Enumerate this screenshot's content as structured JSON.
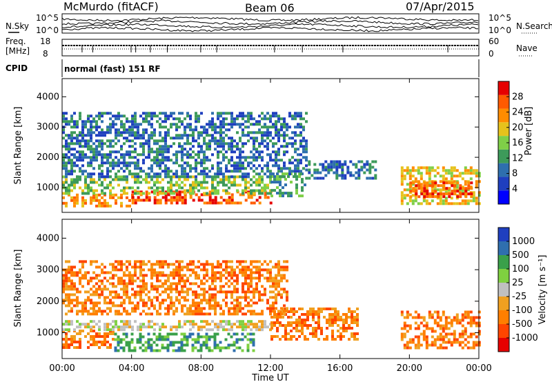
{
  "header": {
    "title": "McMurdo (fitACF)",
    "beam": "Beam 06",
    "date": "07/Apr/2015"
  },
  "left_labels": {
    "nsky": "N.Sky",
    "freq_line1": "Freq.",
    "freq_line2": "[MHz]",
    "cpid": "CPID"
  },
  "right_labels": {
    "nsearch": "N.Search",
    "nave": "Nave"
  },
  "cpid_text": "normal (fast) 151 RF",
  "noise_axis": {
    "left_top": "10^5",
    "left_bottom": "10^0",
    "right_top": "10^5",
    "right_bottom": "10^0"
  },
  "freq_axis": {
    "left_top": "18",
    "left_bottom": "8",
    "right_top": "60",
    "right_bottom": "0"
  },
  "colors": {
    "power_scale": [
      "#0000ff",
      "#1f3fbf",
      "#2e6fae",
      "#3d9a5a",
      "#7fcf48",
      "#e6c21c",
      "#ff8c00",
      "#ff5a00",
      "#e60000"
    ],
    "velocity_scale": [
      "#e60000",
      "#ff4500",
      "#ff7f00",
      "#f0a020",
      "#c0c0c0",
      "#7fd040",
      "#3aa04a",
      "#2f6fae",
      "#1f3fbf"
    ]
  },
  "chart_data": [
    {
      "type": "heatmap",
      "panel": "power",
      "ylabel": "Slant Range [km]",
      "ylim": [
        180,
        4600
      ],
      "yticks": [
        "1000",
        "2000",
        "3000",
        "4000"
      ],
      "xlim_hours": [
        0,
        24
      ],
      "xticks": [
        "00:00",
        "04:00",
        "08:00",
        "12:00",
        "16:00",
        "20:00",
        "00:00"
      ],
      "colorbar": {
        "label": "Power [dB]",
        "ticks": [
          "4",
          "8",
          "12",
          "16",
          "20",
          "24",
          "28"
        ],
        "range": [
          0,
          30
        ]
      },
      "regions": [
        {
          "t": [
            0.0,
            4.0
          ],
          "range_km": [
            400,
            800
          ],
          "dB": 24
        },
        {
          "t": [
            4.0,
            12.0
          ],
          "range_km": [
            450,
            900
          ],
          "dB": 28
        },
        {
          "t": [
            0.0,
            12.0
          ],
          "range_km": [
            800,
            1400
          ],
          "dB": 16
        },
        {
          "t": [
            12.0,
            14.0
          ],
          "range_km": [
            700,
            1500
          ],
          "dB": 12
        },
        {
          "t": [
            14.0,
            18.0
          ],
          "range_km": [
            1300,
            1900
          ],
          "dB": 6
        },
        {
          "t": [
            0.0,
            14.0
          ],
          "range_km": [
            1400,
            3500
          ],
          "dB": 8
        },
        {
          "t": [
            19.5,
            24.0
          ],
          "range_km": [
            500,
            1700
          ],
          "dB": 20
        },
        {
          "t": [
            20.0,
            23.5
          ],
          "range_km": [
            700,
            1200
          ],
          "dB": 26
        }
      ]
    },
    {
      "type": "heatmap",
      "panel": "velocity",
      "ylabel": "Slant Range [km]",
      "ylim": [
        180,
        4600
      ],
      "yticks": [
        "1000",
        "2000",
        "3000",
        "4000"
      ],
      "xlim_hours": [
        0,
        24
      ],
      "xticks": [
        "00:00",
        "04:00",
        "08:00",
        "12:00",
        "16:00",
        "20:00",
        "00:00"
      ],
      "xlabel": "Time UT",
      "colorbar": {
        "label": "Velocity [m s⁻¹]",
        "ticks": [
          "1000",
          "500",
          "100",
          "25",
          "-25",
          "-100",
          "-500",
          "-1000"
        ]
      },
      "regions": [
        {
          "t": [
            0.0,
            3.0
          ],
          "range_km": [
            500,
            1100
          ],
          "velocity": -300
        },
        {
          "t": [
            3.0,
            11.0
          ],
          "range_km": [
            450,
            1000
          ],
          "velocity": 150
        },
        {
          "t": [
            0.0,
            12.0
          ],
          "range_km": [
            1100,
            1400
          ],
          "velocity": 0
        },
        {
          "t": [
            12.0,
            17.0
          ],
          "range_km": [
            800,
            1800
          ],
          "velocity": -200
        },
        {
          "t": [
            19.5,
            24.0
          ],
          "range_km": [
            500,
            1700
          ],
          "velocity": -300
        },
        {
          "t": [
            0.0,
            13.0
          ],
          "range_km": [
            1600,
            3300
          ],
          "velocity": -150
        }
      ]
    }
  ]
}
